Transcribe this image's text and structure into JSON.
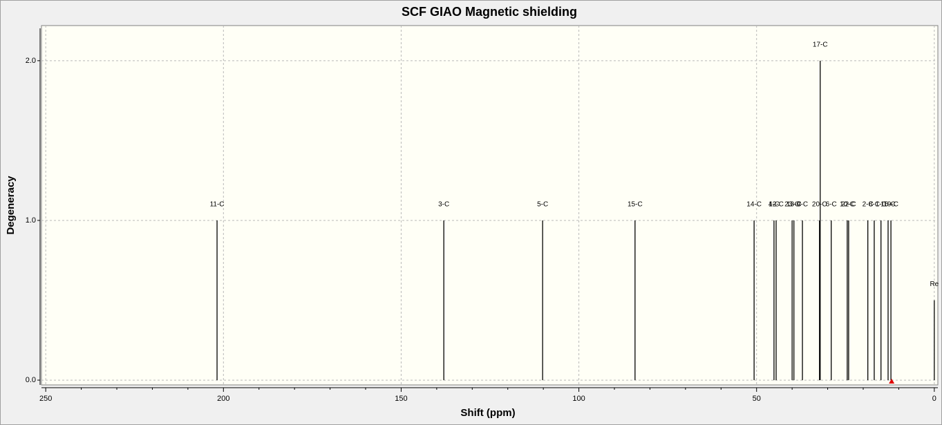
{
  "chart_data": {
    "type": "stick",
    "title": "SCF GIAO Magnetic shielding",
    "x_label": "Shift (ppm)",
    "y_label": "Degeneracy",
    "labels": [
      "11-C",
      "3-C",
      "5-C",
      "15-C",
      "14-C",
      "4-C",
      "12-C",
      "23-C",
      "13-C",
      "9-C",
      "20-C",
      "17-C",
      "6-C",
      "10-C",
      "22-C",
      "2-C",
      "8-C",
      "1-C",
      "16-C",
      "19-C",
      "Re"
    ],
    "x": [
      201.8,
      138.0,
      110.2,
      84.2,
      50.7,
      45.1,
      44.5,
      40.0,
      39.5,
      37.1,
      32.3,
      32.1,
      29.0,
      24.5,
      24.1,
      18.7,
      16.9,
      15.0,
      13.0,
      12.2,
      0.0
    ],
    "values": [
      1,
      1,
      1,
      1,
      1,
      1,
      1,
      1,
      1,
      1,
      1,
      2,
      1,
      1,
      1,
      1,
      1,
      1,
      1,
      1,
      0.5
    ],
    "color": "#000000",
    "xlim": [
      251.2,
      -1
    ],
    "xticks": [
      250,
      200,
      150,
      100,
      50,
      0
    ],
    "xminorticks": [
      240,
      230,
      220,
      210,
      190,
      180,
      170,
      160,
      140,
      130,
      120,
      110,
      90,
      80,
      70,
      60,
      40,
      30,
      20,
      10
    ],
    "ylim": [
      -0.03,
      2.22
    ],
    "yticks": [
      {
        "value": 0,
        "label": "0.0"
      },
      {
        "value": 1,
        "label": "1.0"
      },
      {
        "value": 2,
        "label": "2.0"
      }
    ],
    "grid": true,
    "marker_x": 12.0,
    "marker_color": "#e00000"
  }
}
